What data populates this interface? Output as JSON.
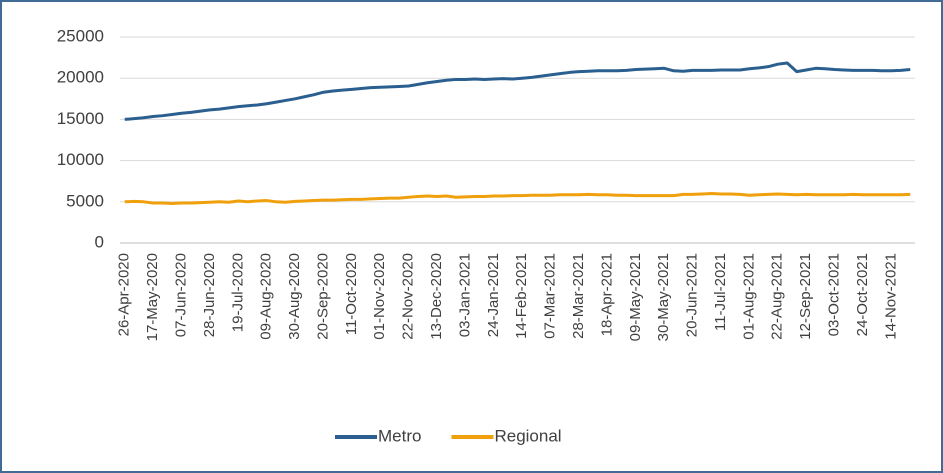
{
  "chart_data": {
    "type": "line",
    "categories": [
      "26-Apr-2020",
      null,
      null,
      "17-May-2020",
      null,
      null,
      "07-Jun-2020",
      null,
      null,
      "28-Jun-2020",
      null,
      null,
      "19-Jul-2020",
      null,
      null,
      "09-Aug-2020",
      null,
      null,
      "30-Aug-2020",
      null,
      null,
      "20-Sep-2020",
      null,
      null,
      "11-Oct-2020",
      null,
      null,
      "01-Nov-2020",
      null,
      null,
      "22-Nov-2020",
      null,
      null,
      "13-Dec-2020",
      null,
      null,
      "03-Jan-2021",
      null,
      null,
      "24-Jan-2021",
      null,
      null,
      "14-Feb-2021",
      null,
      null,
      "07-Mar-2021",
      null,
      null,
      "28-Mar-2021",
      null,
      null,
      "18-Apr-2021",
      null,
      null,
      "09-May-2021",
      null,
      null,
      "30-May-2021",
      null,
      null,
      "20-Jun-2021",
      null,
      null,
      "11-Jul-2021",
      null,
      null,
      "01-Aug-2021",
      null,
      null,
      "22-Aug-2021",
      null,
      null,
      "12-Sep-2021",
      null,
      null,
      "03-Oct-2021",
      null,
      null,
      "24-Oct-2021",
      null,
      null,
      "14-Nov-2021",
      null,
      null
    ],
    "series": [
      {
        "name": "Metro",
        "color": "#2a5f8f",
        "values": [
          15000,
          15100,
          15200,
          15350,
          15450,
          15600,
          15750,
          15850,
          16000,
          16150,
          16250,
          16400,
          16550,
          16650,
          16750,
          16900,
          17100,
          17300,
          17500,
          17750,
          18000,
          18300,
          18450,
          18550,
          18650,
          18750,
          18850,
          18900,
          18950,
          19000,
          19050,
          19250,
          19450,
          19600,
          19750,
          19850,
          19850,
          19900,
          19850,
          19900,
          19950,
          19900,
          20000,
          20100,
          20250,
          20400,
          20550,
          20700,
          20800,
          20850,
          20900,
          20900,
          20900,
          20950,
          21050,
          21100,
          21150,
          21200,
          20900,
          20850,
          20950,
          20950,
          20950,
          21000,
          21000,
          21000,
          21150,
          21250,
          21400,
          21700,
          21850,
          20800,
          21000,
          21200,
          21150,
          21050,
          21000,
          20950,
          20950,
          20950,
          20900,
          20900,
          20950,
          21050
        ]
      },
      {
        "name": "Regional",
        "color": "#f0a00c",
        "values": [
          5000,
          5050,
          5000,
          4850,
          4850,
          4800,
          4850,
          4850,
          4900,
          4950,
          5000,
          4950,
          5100,
          5000,
          5100,
          5150,
          5000,
          4950,
          5050,
          5100,
          5150,
          5200,
          5200,
          5250,
          5300,
          5300,
          5350,
          5400,
          5450,
          5450,
          5550,
          5650,
          5700,
          5650,
          5700,
          5550,
          5600,
          5650,
          5650,
          5700,
          5700,
          5750,
          5750,
          5800,
          5800,
          5800,
          5850,
          5850,
          5850,
          5900,
          5850,
          5850,
          5800,
          5800,
          5750,
          5750,
          5750,
          5750,
          5750,
          5900,
          5900,
          5950,
          6000,
          5950,
          5950,
          5900,
          5800,
          5850,
          5900,
          5950,
          5900,
          5850,
          5900,
          5850,
          5850,
          5850,
          5850,
          5900,
          5850,
          5850,
          5850,
          5850,
          5850,
          5900
        ]
      }
    ],
    "ylim": [
      0,
      25000
    ],
    "yticks": [
      0,
      5000,
      10000,
      15000,
      20000,
      25000
    ],
    "grid": true,
    "legend": "bottom"
  }
}
